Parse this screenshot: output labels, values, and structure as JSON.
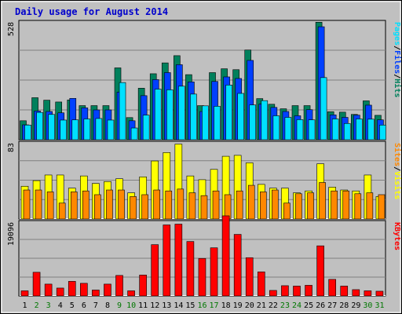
{
  "chart_data": {
    "type": "bar",
    "title": "Daily usage for August 2014",
    "categories": [
      "1",
      "2",
      "3",
      "4",
      "5",
      "6",
      "7",
      "8",
      "9",
      "10",
      "11",
      "12",
      "13",
      "14",
      "15",
      "16",
      "17",
      "18",
      "19",
      "20",
      "21",
      "22",
      "23",
      "24",
      "25",
      "26",
      "27",
      "28",
      "29",
      "30",
      "31"
    ],
    "weekend_days": [
      "2",
      "3",
      "9",
      "10",
      "16",
      "17",
      "23",
      "24",
      "30",
      "31"
    ],
    "panels": [
      {
        "name": "hits",
        "ymax": 528,
        "ymax_label": "528",
        "legend": [
          "Pages",
          "/",
          "Files",
          "/",
          "Hits"
        ],
        "series": [
          {
            "name": "Hits",
            "values": [
              84,
              186,
              175,
              167,
              176,
              151,
              151,
              151,
              318,
              98,
              228,
              292,
              340,
              372,
              288,
              151,
              297,
              314,
              310,
              397,
              182,
              157,
              137,
              151,
              151,
              520,
              124,
              122,
              112,
              172,
              108
            ]
          },
          {
            "name": "Files",
            "values": [
              66,
              127,
              125,
              119,
              183,
              141,
              132,
              132,
              211,
              84,
              195,
              266,
              297,
              332,
              256,
              125,
              258,
              278,
              271,
              351,
              158,
              143,
              125,
              106,
              133,
              500,
              110,
              99,
              109,
              153,
              88
            ]
          },
          {
            "name": "Pages",
            "values": [
              65,
              121,
              112,
              87,
              88,
              92,
              94,
              87,
              253,
              52,
              109,
              224,
              221,
              237,
              202,
              150,
              148,
              242,
              205,
              154,
              173,
              106,
              99,
              89,
              88,
              275,
              92,
              72,
              92,
              91,
              65
            ]
          }
        ]
      },
      {
        "name": "visits",
        "ymax": 83,
        "ymax_label": "83",
        "legend": [
          "Sites",
          "/",
          "Visits"
        ],
        "series": [
          {
            "name": "Visits",
            "values": [
              35,
              41,
              47,
              47,
              33,
              46,
              38,
              40,
              43,
              28,
              45,
              62,
              71,
              80,
              46,
              42,
              53,
              67,
              68,
              60,
              37,
              33,
              33,
              28,
              30,
              59,
              34,
              31,
              30,
              47,
              24
            ]
          },
          {
            "name": "Sites",
            "values": [
              31,
              31,
              29,
              17,
              29,
              30,
              26,
              31,
              31,
              24,
              26,
              31,
              30,
              32,
              28,
              25,
              30,
              26,
              30,
              36,
              29,
              31,
              17,
              27,
              28,
              39,
              30,
              30,
              27,
              28,
              26
            ]
          }
        ]
      },
      {
        "name": "kbytes",
        "ymax": 19096,
        "ymax_label": "19096",
        "legend": [
          "KBytes"
        ],
        "series": [
          {
            "name": "KBytes",
            "values": [
              1300,
              6000,
              3000,
              2000,
              3700,
              3200,
              1500,
              3000,
              5200,
              1300,
              5300,
              13000,
              18000,
              18200,
              13800,
              9500,
              12200,
              20300,
              15600,
              9700,
              6100,
              1400,
              2600,
              2500,
              2700,
              12700,
              4200,
              2500,
              1600,
              1300,
              1200
            ]
          }
        ]
      }
    ]
  },
  "colors": {
    "frame_bg": "#c0c0c0",
    "plot_bg": "#c0c0c0",
    "title": "#0000cc",
    "weekday": "#000000",
    "weekend": "#007700",
    "hits": "#00805c",
    "files": "#0040ff",
    "pages": "#00e0ff",
    "visits": "#ffff00",
    "sites": "#ff8800",
    "kbytes": "#ff0000"
  }
}
